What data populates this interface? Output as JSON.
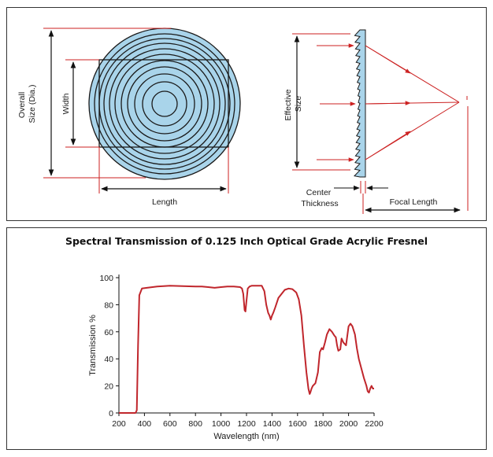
{
  "diagram": {
    "labels": {
      "overall_size": [
        "Overall",
        "Size  (Dia.)"
      ],
      "width": "Width",
      "length": "Length",
      "effective_size": [
        "Effective",
        "Size"
      ],
      "center_thickness": [
        "Center",
        "Thickness"
      ],
      "focal_length": "Focal Length"
    },
    "colors": {
      "lens_fill": "#a9d4ea",
      "ring_stroke": "#1a1a1a",
      "dimension_line": "#cc2222",
      "ray": "#cc2222",
      "arrow": "#111111"
    }
  },
  "chart_data": {
    "type": "line",
    "title": "Spectral Transmission of 0.125 Inch Optical Grade Acrylic Fresnel",
    "xlabel": "Wavelength (nm)",
    "ylabel": "Transmission %",
    "xlim": [
      200,
      2200
    ],
    "ylim": [
      0,
      100
    ],
    "xticks": [
      200,
      400,
      600,
      800,
      1000,
      1200,
      1400,
      1600,
      1800,
      2000,
      2200
    ],
    "yticks": [
      0,
      20,
      40,
      60,
      80,
      100
    ],
    "grid": false,
    "series_color": "#c0262c",
    "series": [
      {
        "name": "Transmission",
        "x": [
          200,
          330,
          340,
          350,
          360,
          380,
          420,
          500,
          600,
          700,
          800,
          850,
          900,
          950,
          1000,
          1050,
          1100,
          1150,
          1165,
          1175,
          1185,
          1192,
          1200,
          1210,
          1225,
          1240,
          1280,
          1320,
          1340,
          1355,
          1370,
          1380,
          1390,
          1400,
          1410,
          1425,
          1450,
          1500,
          1530,
          1560,
          1590,
          1610,
          1630,
          1650,
          1670,
          1685,
          1695,
          1700,
          1710,
          1720,
          1740,
          1760,
          1775,
          1790,
          1800,
          1815,
          1830,
          1850,
          1870,
          1890,
          1900,
          1910,
          1920,
          1935,
          1945,
          1960,
          1980,
          2000,
          2015,
          2030,
          2050,
          2065,
          2080,
          2100,
          2120,
          2140,
          2150,
          2160,
          2170,
          2180,
          2190,
          2200
        ],
        "values": [
          0,
          0,
          2,
          50,
          87,
          92,
          92.5,
          93.5,
          94,
          93.8,
          93.5,
          93.5,
          93,
          92.5,
          93,
          93.5,
          93.5,
          93,
          92,
          88,
          76,
          75,
          83,
          92,
          93.5,
          94,
          94,
          94,
          90,
          80,
          74,
          72,
          69,
          72,
          74,
          78,
          85,
          91,
          92,
          91.5,
          89,
          84,
          72,
          50,
          30,
          18,
          14,
          15,
          18,
          20,
          22,
          30,
          45,
          48,
          47,
          52,
          58,
          62,
          60,
          57,
          56,
          50,
          46,
          47,
          55,
          52,
          50,
          64,
          66,
          64,
          58,
          48,
          40,
          33,
          26,
          20,
          16,
          15,
          18,
          20,
          18,
          18
        ]
      }
    ]
  }
}
